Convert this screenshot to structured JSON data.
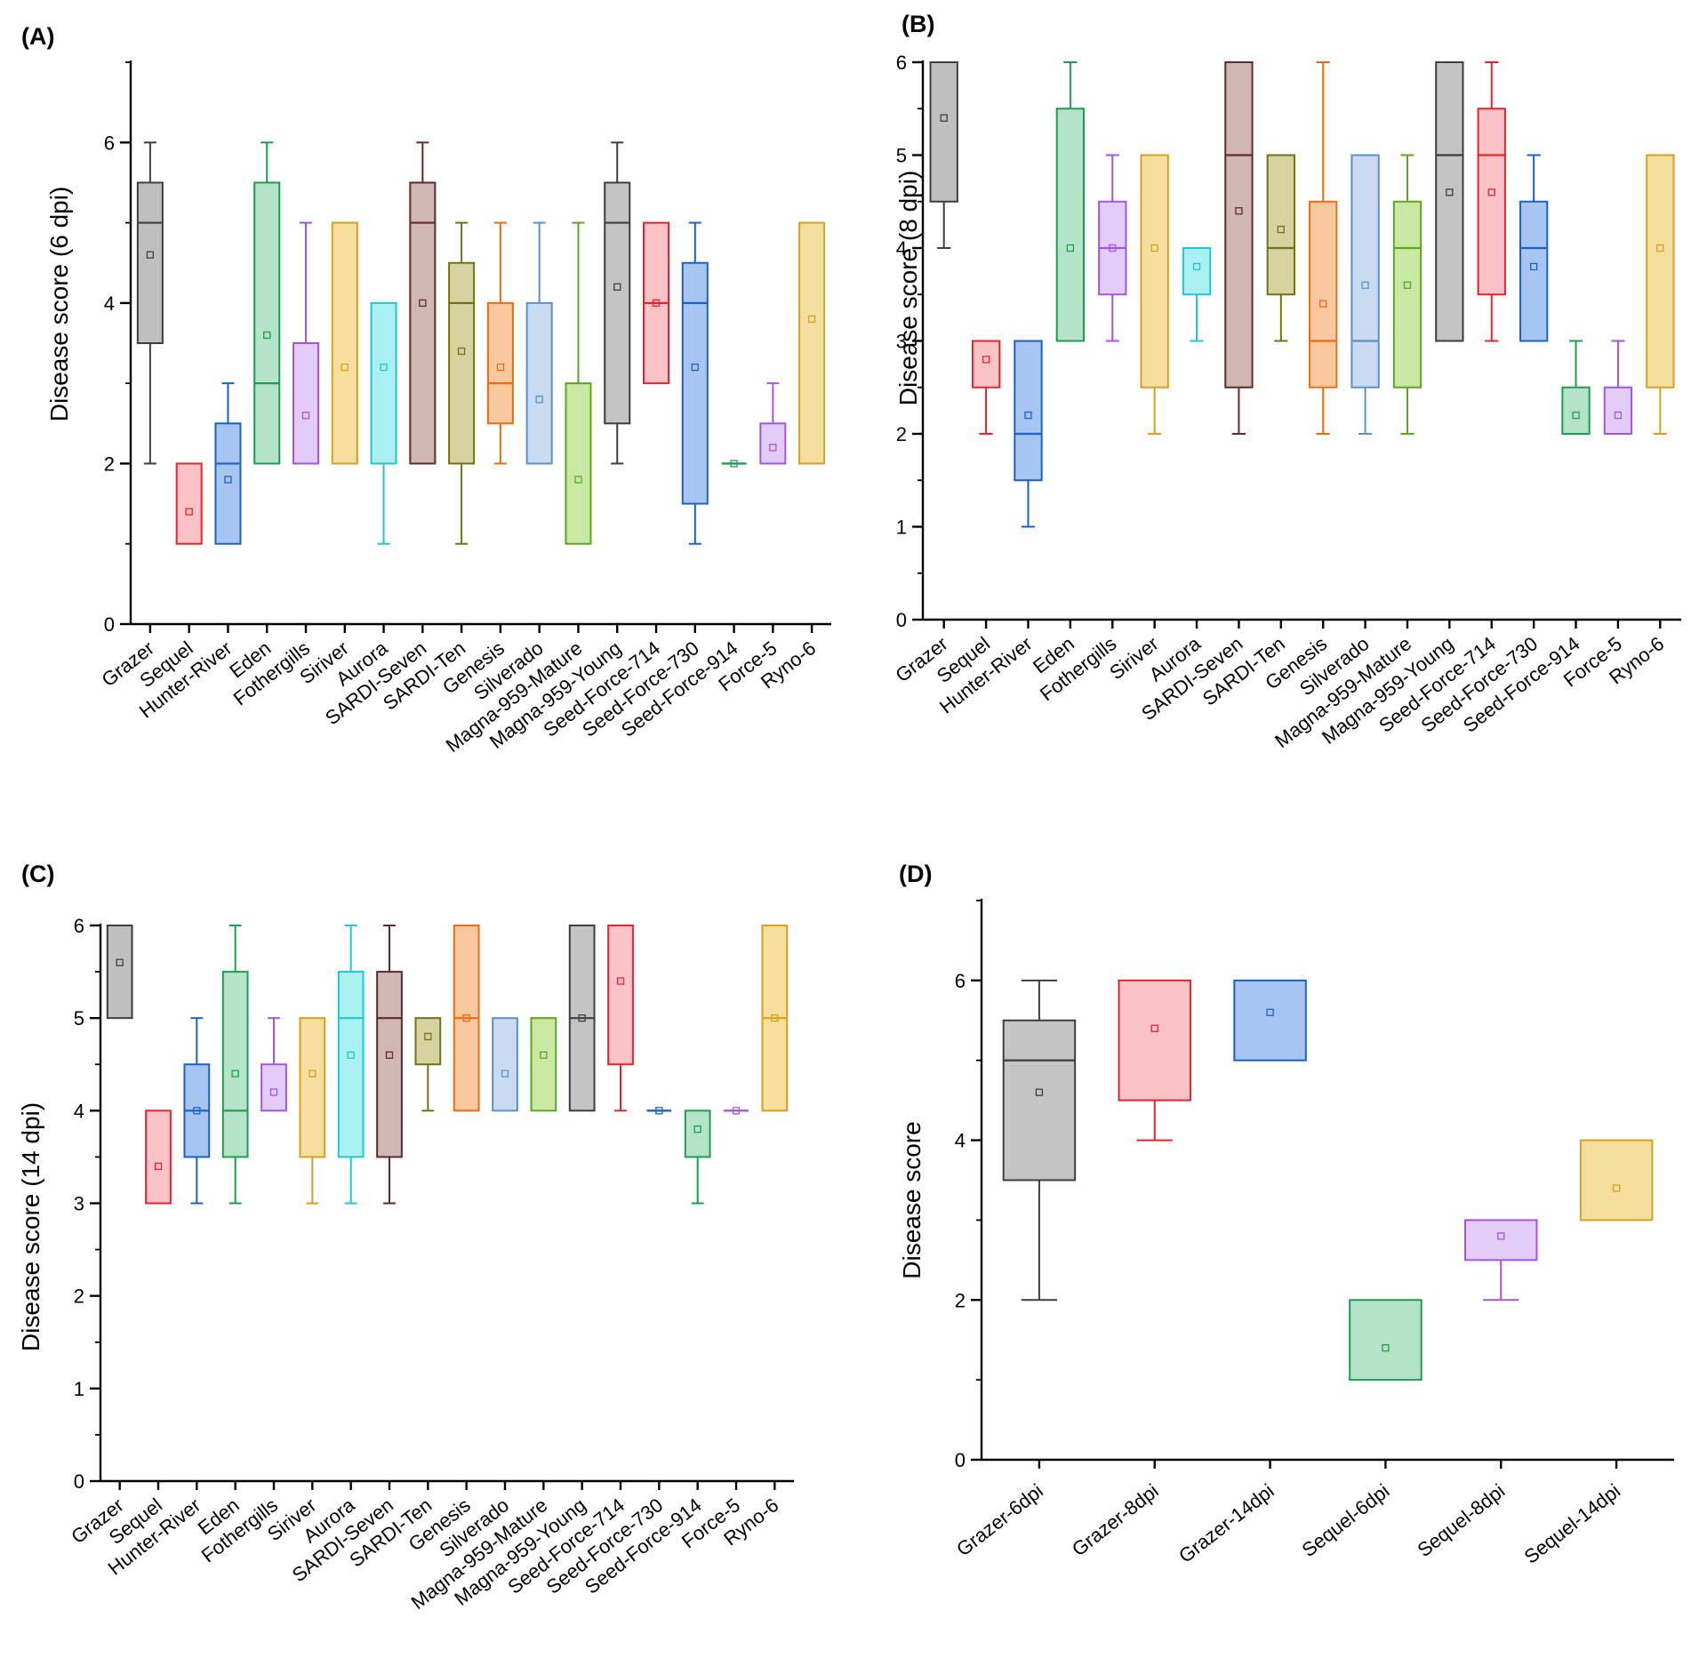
{
  "colors": {
    "Grazer": "#3e3e3e",
    "Sequel": "#e8222c",
    "Hunter-River": "#1c5fc7",
    "Eden": "#1d9c52",
    "Fothergills": "#a256e0",
    "Siriver": "#d6a11c",
    "Aurora": "#22c6cd",
    "SARDI-Seven": "#5e2b2b",
    "SARDI-Ten": "#727212",
    "Genesis": "#f06a10",
    "Silverado": "#5c90c8",
    "Magna-959-Mature": "#5ea61e",
    "Magna-959-Young": "#3e3e3e",
    "Seed-Force-714": "#e8222c",
    "Seed-Force-730": "#1c5fc7",
    "Seed-Force-914": "#1d9c52",
    "Force-5": "#a256e0",
    "Ryno-6": "#d6a11c",
    "Grazer-6dpi": "#3e3e3e",
    "Grazer-8dpi": "#e8222c",
    "Grazer-14dpi": "#1c5fc7",
    "Sequel-6dpi": "#1d9c52",
    "Sequel-8dpi": "#a256e0",
    "Sequel-14dpi": "#d6a11c"
  },
  "fills": {
    "Grazer": "#bfbfbf",
    "Sequel": "#fbc3c5",
    "Hunter-River": "#a7c5f1",
    "Eden": "#b5e3c7",
    "Fothergills": "#e3ccf8",
    "Siriver": "#f4df9f",
    "Aurora": "#a8f0f2",
    "SARDI-Seven": "#d1b6b6",
    "SARDI-Ten": "#d5d3a0",
    "Genesis": "#fbc99f",
    "Silverado": "#c8dbf0",
    "Magna-959-Mature": "#c8e8a3",
    "Magna-959-Young": "#c4c4c4",
    "Seed-Force-714": "#fbc3c5",
    "Seed-Force-730": "#a7c5f1",
    "Seed-Force-914": "#b5e3c7",
    "Force-5": "#e3ccf8",
    "Ryno-6": "#f4df9f",
    "Grazer-6dpi": "#c4c4c4",
    "Grazer-8dpi": "#fbc3c5",
    "Grazer-14dpi": "#a7c5f1",
    "Sequel-6dpi": "#b5e3c7",
    "Sequel-8dpi": "#e3ccf8",
    "Sequel-14dpi": "#f4df9f"
  },
  "chart_data": [
    {
      "type": "box",
      "panel": "(A)",
      "ylabel": "Disease score (6 dpi)",
      "ylim": [
        0,
        7
      ],
      "yticks": [
        0,
        2,
        4,
        6
      ],
      "yminor_step": 1,
      "categories": [
        "Grazer",
        "Sequel",
        "Hunter-River",
        "Eden",
        "Fothergills",
        "Siriver",
        "Aurora",
        "SARDI-Seven",
        "SARDI-Ten",
        "Genesis",
        "Silverado",
        "Magna-959-Mature",
        "Magna-959-Young",
        "Seed-Force-714",
        "Seed-Force-730",
        "Seed-Force-914",
        "Force-5",
        "Ryno-6"
      ],
      "boxes": [
        {
          "min": 2,
          "q1": 3.5,
          "median": 5,
          "q3": 5.5,
          "max": 6,
          "mean": 4.6
        },
        {
          "min": 1,
          "q1": 1,
          "median": 1,
          "q3": 2,
          "max": 2,
          "mean": 1.4
        },
        {
          "min": 1,
          "q1": 1,
          "median": 2,
          "q3": 2.5,
          "max": 3,
          "mean": 1.8
        },
        {
          "min": 2,
          "q1": 2,
          "median": 3,
          "q3": 5.5,
          "max": 6,
          "mean": 3.6
        },
        {
          "min": 2,
          "q1": 2,
          "median": 2,
          "q3": 3.5,
          "max": 5,
          "mean": 2.6
        },
        {
          "min": 2,
          "q1": 2,
          "median": 2,
          "q3": 5,
          "max": 5,
          "mean": 3.2
        },
        {
          "min": 1,
          "q1": 2,
          "median": 4,
          "q3": 4,
          "max": 4,
          "mean": 3.2
        },
        {
          "min": 2,
          "q1": 2,
          "median": 5,
          "q3": 5.5,
          "max": 6,
          "mean": 4.0
        },
        {
          "min": 1,
          "q1": 2,
          "median": 4,
          "q3": 4.5,
          "max": 5,
          "mean": 3.4
        },
        {
          "min": 2,
          "q1": 2.5,
          "median": 3,
          "q3": 4,
          "max": 5,
          "mean": 3.2
        },
        {
          "min": 2,
          "q1": 2,
          "median": 2,
          "q3": 4,
          "max": 5,
          "mean": 2.8
        },
        {
          "min": 1,
          "q1": 1,
          "median": 1,
          "q3": 3,
          "max": 5,
          "mean": 1.8
        },
        {
          "min": 2,
          "q1": 2.5,
          "median": 5,
          "q3": 5.5,
          "max": 6,
          "mean": 4.2
        },
        {
          "min": 3,
          "q1": 3,
          "median": 4,
          "q3": 5,
          "max": 5,
          "mean": 4.0
        },
        {
          "min": 1,
          "q1": 1.5,
          "median": 4,
          "q3": 4.5,
          "max": 5,
          "mean": 3.2
        },
        {
          "min": 2,
          "q1": 2,
          "median": 2,
          "q3": 2,
          "max": 2,
          "mean": 2.0
        },
        {
          "min": 2,
          "q1": 2,
          "median": 2,
          "q3": 2.5,
          "max": 3,
          "mean": 2.2
        },
        {
          "min": 2,
          "q1": 2,
          "median": 2,
          "q3": 5,
          "max": 5,
          "mean": 3.8
        }
      ]
    },
    {
      "type": "box",
      "panel": "(B)",
      "ylabel": "Disease score (8 dpi)",
      "ylim": [
        0,
        6
      ],
      "yticks": [
        0,
        1,
        2,
        3,
        4,
        5,
        6
      ],
      "yminor_step": 0.5,
      "categories": [
        "Grazer",
        "Sequel",
        "Hunter-River",
        "Eden",
        "Fothergills",
        "Siriver",
        "Aurora",
        "SARDI-Seven",
        "SARDI-Ten",
        "Genesis",
        "Silverado",
        "Magna-959-Mature",
        "Magna-959-Young",
        "Seed-Force-714",
        "Seed-Force-730",
        "Seed-Force-914",
        "Force-5",
        "Ryno-6"
      ],
      "boxes": [
        {
          "min": 4,
          "q1": 4.5,
          "median": 6,
          "q3": 6,
          "max": 6,
          "mean": 5.4
        },
        {
          "min": 2,
          "q1": 2.5,
          "median": 3,
          "q3": 3,
          "max": 3,
          "mean": 2.8
        },
        {
          "min": 1,
          "q1": 1.5,
          "median": 2,
          "q3": 3,
          "max": 3,
          "mean": 2.2
        },
        {
          "min": 3,
          "q1": 3,
          "median": 3,
          "q3": 5.5,
          "max": 6,
          "mean": 4.0
        },
        {
          "min": 3,
          "q1": 3.5,
          "median": 4,
          "q3": 4.5,
          "max": 5,
          "mean": 4.0
        },
        {
          "min": 2,
          "q1": 2.5,
          "median": 5,
          "q3": 5,
          "max": 5,
          "mean": 4.0
        },
        {
          "min": 3,
          "q1": 3.5,
          "median": 4,
          "q3": 4,
          "max": 4,
          "mean": 3.8
        },
        {
          "min": 2,
          "q1": 2.5,
          "median": 5,
          "q3": 6,
          "max": 6,
          "mean": 4.4
        },
        {
          "min": 3,
          "q1": 3.5,
          "median": 4,
          "q3": 5,
          "max": 5,
          "mean": 4.2
        },
        {
          "min": 2,
          "q1": 2.5,
          "median": 3,
          "q3": 4.5,
          "max": 6,
          "mean": 3.4
        },
        {
          "min": 2,
          "q1": 2.5,
          "median": 3,
          "q3": 5,
          "max": 5,
          "mean": 3.6
        },
        {
          "min": 2,
          "q1": 2.5,
          "median": 4,
          "q3": 4.5,
          "max": 5,
          "mean": 3.6
        },
        {
          "min": 3,
          "q1": 3,
          "median": 5,
          "q3": 6,
          "max": 6,
          "mean": 4.6
        },
        {
          "min": 3,
          "q1": 3.5,
          "median": 5,
          "q3": 5.5,
          "max": 6,
          "mean": 4.6
        },
        {
          "min": 3,
          "q1": 3,
          "median": 4,
          "q3": 4.5,
          "max": 5,
          "mean": 3.8
        },
        {
          "min": 2,
          "q1": 2,
          "median": 2,
          "q3": 2.5,
          "max": 3,
          "mean": 2.2
        },
        {
          "min": 2,
          "q1": 2,
          "median": 2,
          "q3": 2.5,
          "max": 3,
          "mean": 2.2
        },
        {
          "min": 2,
          "q1": 2.5,
          "median": 5,
          "q3": 5,
          "max": 5,
          "mean": 4.0
        }
      ]
    },
    {
      "type": "box",
      "panel": "(C)",
      "ylabel": "Disease score (14 dpi)",
      "ylim": [
        0,
        6
      ],
      "yticks": [
        0,
        1,
        2,
        3,
        4,
        5,
        6
      ],
      "yminor_step": 0.5,
      "categories": [
        "Grazer",
        "Sequel",
        "Hunter-River",
        "Eden",
        "Fothergills",
        "Siriver",
        "Aurora",
        "SARDI-Seven",
        "SARDI-Ten",
        "Genesis",
        "Silverado",
        "Magna-959-Mature",
        "Magna-959-Young",
        "Seed-Force-714",
        "Seed-Force-730",
        "Seed-Force-914",
        "Force-5",
        "Ryno-6"
      ],
      "boxes": [
        {
          "min": 5,
          "q1": 5,
          "median": 6,
          "q3": 6,
          "max": 6,
          "mean": 5.6
        },
        {
          "min": 3,
          "q1": 3,
          "median": 3,
          "q3": 4,
          "max": 4,
          "mean": 3.4
        },
        {
          "min": 3,
          "q1": 3.5,
          "median": 4,
          "q3": 4.5,
          "max": 5,
          "mean": 4.0
        },
        {
          "min": 3,
          "q1": 3.5,
          "median": 4,
          "q3": 5.5,
          "max": 6,
          "mean": 4.4
        },
        {
          "min": 4,
          "q1": 4,
          "median": 4,
          "q3": 4.5,
          "max": 5,
          "mean": 4.2
        },
        {
          "min": 3,
          "q1": 3.5,
          "median": 3.5,
          "q3": 5,
          "max": 5,
          "mean": 4.4
        },
        {
          "min": 3,
          "q1": 3.5,
          "median": 5,
          "q3": 5.5,
          "max": 6,
          "mean": 4.6
        },
        {
          "min": 3,
          "q1": 3.5,
          "median": 5,
          "q3": 5.5,
          "max": 6,
          "mean": 4.6
        },
        {
          "min": 4,
          "q1": 4.5,
          "median": 5,
          "q3": 5,
          "max": 5,
          "mean": 4.8
        },
        {
          "min": 4,
          "q1": 4,
          "median": 5,
          "q3": 6,
          "max": 6,
          "mean": 5.0
        },
        {
          "min": 4,
          "q1": 4,
          "median": 4,
          "q3": 5,
          "max": 5,
          "mean": 4.4
        },
        {
          "min": 4,
          "q1": 4,
          "median": 4,
          "q3": 5,
          "max": 5,
          "mean": 4.6
        },
        {
          "min": 4,
          "q1": 4,
          "median": 5,
          "q3": 6,
          "max": 6,
          "mean": 5.0
        },
        {
          "min": 4,
          "q1": 4.5,
          "median": 6,
          "q3": 6,
          "max": 6,
          "mean": 5.4
        },
        {
          "min": 4,
          "q1": 4,
          "median": 4,
          "q3": 4,
          "max": 4,
          "mean": 4.0
        },
        {
          "min": 3,
          "q1": 3.5,
          "median": 4,
          "q3": 4,
          "max": 4,
          "mean": 3.8
        },
        {
          "min": 4,
          "q1": 4,
          "median": 4,
          "q3": 4,
          "max": 4,
          "mean": 4.0
        },
        {
          "min": 4,
          "q1": 4,
          "median": 5,
          "q3": 6,
          "max": 6,
          "mean": 5.0
        }
      ]
    },
    {
      "type": "box",
      "panel": "(D)",
      "ylabel": "Disease score",
      "ylim": [
        0,
        7
      ],
      "yticks": [
        0,
        2,
        4,
        6
      ],
      "yminor_step": 1,
      "categories": [
        "Grazer-6dpi",
        "Grazer-8dpi",
        "Grazer-14dpi",
        "Sequel-6dpi",
        "Sequel-8dpi",
        "Sequel-14dpi"
      ],
      "boxes": [
        {
          "min": 2,
          "q1": 3.5,
          "median": 5,
          "q3": 5.5,
          "max": 6,
          "mean": 4.6
        },
        {
          "min": 4,
          "q1": 4.5,
          "median": 6,
          "q3": 6,
          "max": 6,
          "mean": 5.4
        },
        {
          "min": 5,
          "q1": 5,
          "median": 6,
          "q3": 6,
          "max": 6,
          "mean": 5.6
        },
        {
          "min": 1,
          "q1": 1,
          "median": 1,
          "q3": 2,
          "max": 2,
          "mean": 1.4
        },
        {
          "min": 2,
          "q1": 2.5,
          "median": 3,
          "q3": 3,
          "max": 3,
          "mean": 2.8
        },
        {
          "min": 3,
          "q1": 3,
          "median": 3,
          "q3": 4,
          "max": 4,
          "mean": 3.4
        }
      ]
    }
  ]
}
